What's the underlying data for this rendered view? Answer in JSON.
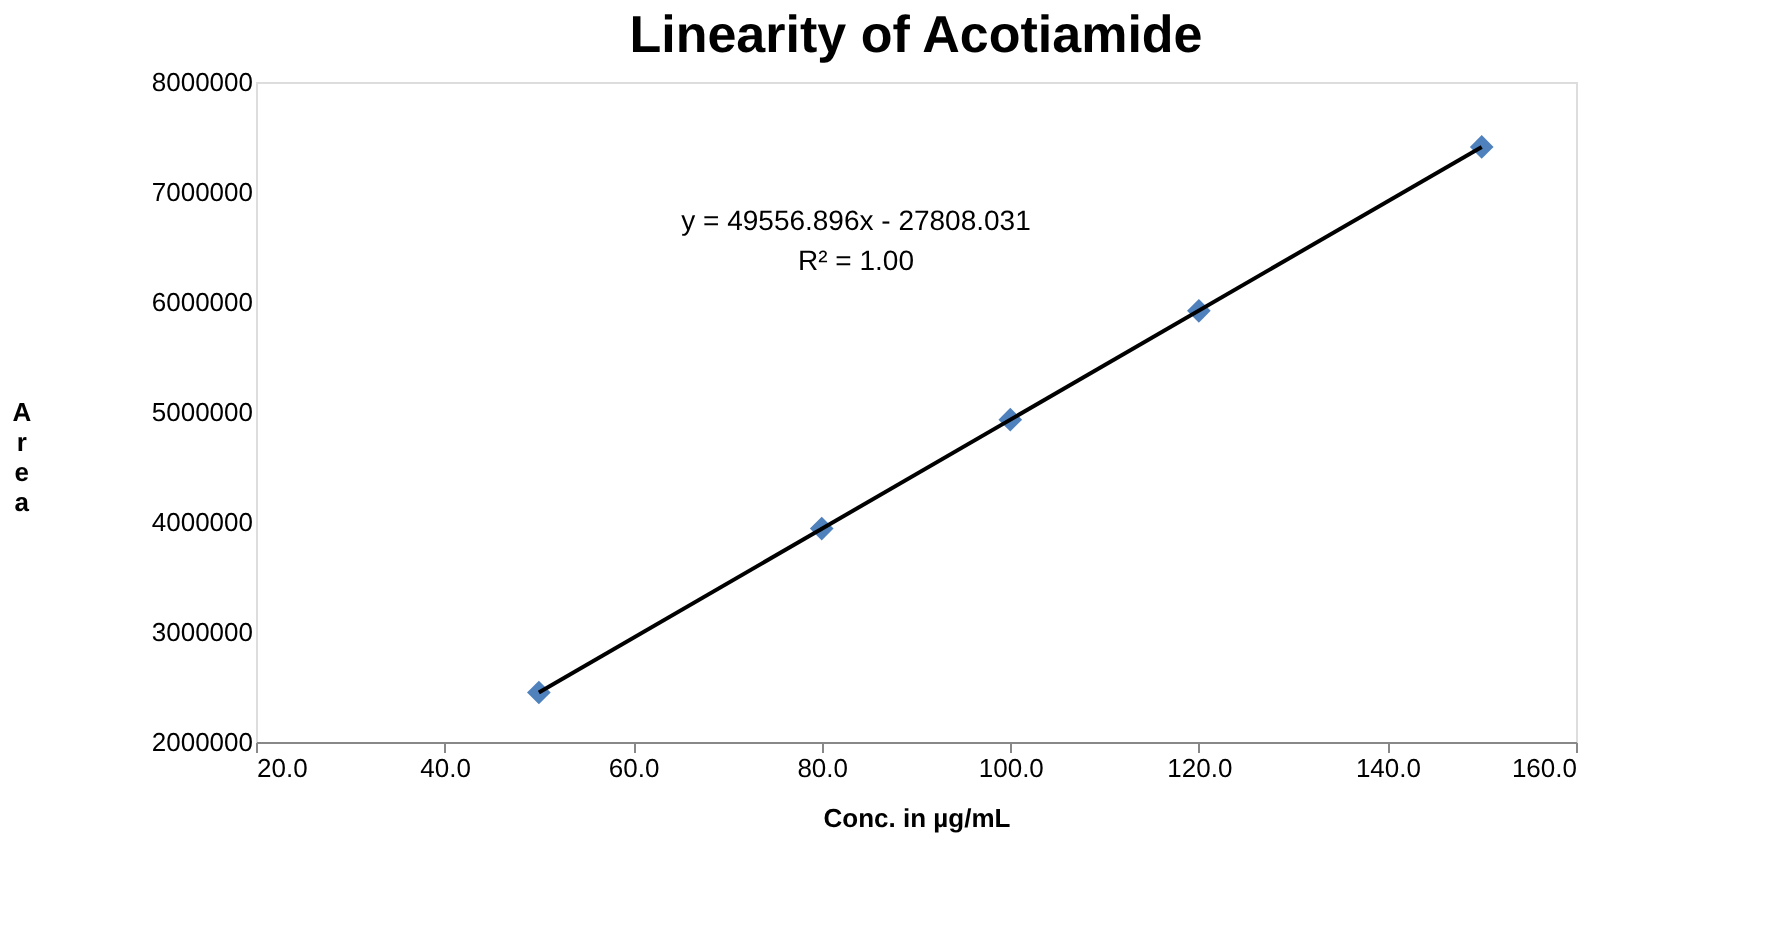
{
  "chart_data": {
    "type": "scatter",
    "title": "Linearity of Acotiamide",
    "xlabel": "Conc. in µg/mL",
    "ylabel": "Area",
    "x": [
      50,
      80,
      100,
      120,
      150
    ],
    "series": [
      {
        "color": "#4f81bd",
        "marker": "diamond",
        "values": [
          2450000,
          3940000,
          4930000,
          5920000,
          7410000
        ]
      },
      {
        "type": "line",
        "color": "#000000",
        "x": [
          50,
          150
        ],
        "values": [
          2450000,
          7410000
        ],
        "line_style": "solid",
        "marker": "none"
      }
    ],
    "xlim": [
      20,
      160
    ],
    "xticks": [
      {
        "value": 20,
        "label": "20.0"
      },
      {
        "value": 40,
        "label": "40.0"
      },
      {
        "value": 60,
        "label": "60.0"
      },
      {
        "value": 80,
        "label": "80.0"
      },
      {
        "value": 100,
        "label": "100.0"
      },
      {
        "value": 120,
        "label": "120.0"
      },
      {
        "value": 140,
        "label": "140.0"
      },
      {
        "value": 160,
        "label": "160.0"
      }
    ],
    "ylim": [
      2000000,
      8000000
    ],
    "yticks": [
      2000000,
      3000000,
      4000000,
      5000000,
      6000000,
      7000000,
      8000000
    ],
    "grid": false,
    "annotations": [
      "y = 49556.896x - 27808.031",
      "R² = 1.00"
    ]
  }
}
